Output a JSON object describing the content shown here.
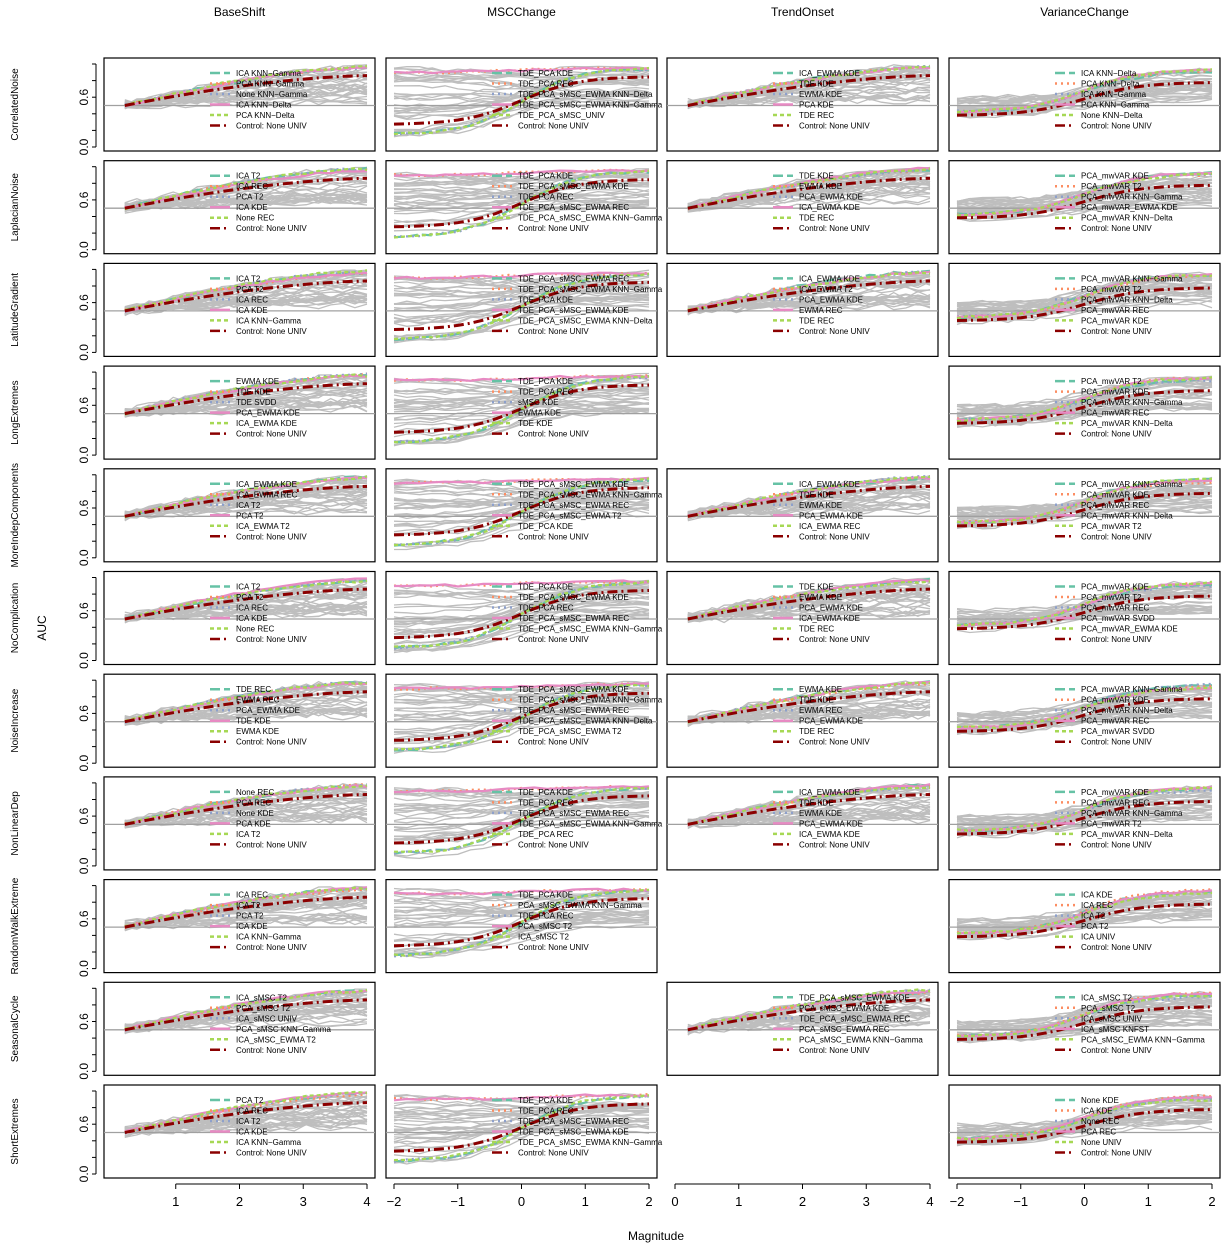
{
  "figure": {
    "ylabel": "AUC",
    "xlabel": "Magnitude",
    "reference_line": 0.5,
    "colors": {
      "legend_styles": [
        "#66c2a5",
        "#fc8d62",
        "#8da0cb",
        "#e78ac3",
        "#a6d854",
        "#8b0000"
      ],
      "background_lines": "#bebebe",
      "reference_line": "#a0a0a0"
    }
  },
  "chart_data": {
    "type": "line",
    "grid": false,
    "columns": [
      {
        "name": "BaseShift",
        "xlim": [
          0,
          4
        ],
        "xticks": [
          1,
          2,
          3,
          4
        ]
      },
      {
        "name": "MSCChange",
        "xlim": [
          -2,
          2
        ],
        "xticks": [
          -2,
          -1,
          0,
          1,
          2
        ]
      },
      {
        "name": "TrendOnset",
        "xlim": [
          0,
          4
        ],
        "xticks": [
          0,
          1,
          2,
          3,
          4
        ]
      },
      {
        "name": "VarianceChange",
        "xlim": [
          -2,
          2
        ],
        "xticks": [
          -2,
          -1,
          0,
          1,
          2
        ]
      }
    ],
    "rows": [
      "CorrelatedNoise",
      "LaplacianNoise",
      "LatitudeGradient",
      "LongExtremes",
      "MoreIndepComponents",
      "NoComplication",
      "NoiseIncrease",
      "NonLinearDep",
      "RandomWalkExtreme",
      "SeasonalCycle",
      "ShortExtremes"
    ],
    "ylim": [
      0,
      1
    ],
    "yticks": [
      "0.0",
      "0.6"
    ],
    "panels": [
      [
        {
          "legend": [
            "ICA KNN−Gamma",
            "PCA KNN−Gamma",
            "None KNN−Gamma",
            "ICA KNN−Delta",
            "PCA KNN−Delta",
            "Control: None UNIV"
          ]
        },
        {
          "legend": [
            "TDE_PCA KDE",
            "TDE_PCA REC",
            "TDE_PCA_sMSC_EWMA KNN−Delta",
            "TDE_PCA_sMSC_EWMA KNN−Gamma",
            "TDE_PCA_sMSC_UNIV",
            "Control: None UNIV"
          ]
        },
        {
          "legend": [
            "ICA_EWMA KDE",
            "TDE KDE",
            "EWMA KDE",
            "PCA KDE",
            "TDE REC",
            "Control: None UNIV"
          ]
        },
        {
          "legend": [
            "ICA KNN−Delta",
            "PCA KNN−Delta",
            "ICA KNN−Gamma",
            "PCA KNN−Gamma",
            "None KNN−Delta",
            "Control: None UNIV"
          ]
        }
      ],
      [
        {
          "legend": [
            "ICA T2",
            "ICA REC",
            "PCA T2",
            "ICA KDE",
            "None REC",
            "Control: None UNIV"
          ]
        },
        {
          "legend": [
            "TDE_PCA KDE",
            "TDE_PCA_sMSC_EWMA KDE",
            "TDE_PCA REC",
            "TDE_PCA_sMSC_EWMA REC",
            "TDE_PCA_sMSC_EWMA KNN−Gamma",
            "Control: None UNIV"
          ]
        },
        {
          "legend": [
            "TDE KDE",
            "EWMA KDE",
            "PCA_EWMA KDE",
            "ICA_EWMA KDE",
            "TDE REC",
            "Control: None UNIV"
          ]
        },
        {
          "legend": [
            "PCA_mwVAR KDE",
            "PCA_mwVAR T2",
            "PCA_mwVAR KNN−Gamma",
            "PCA_mwVAR_EWMA KDE",
            "PCA_mwVAR KNN−Delta",
            "Control: None UNIV"
          ]
        }
      ],
      [
        {
          "legend": [
            "ICA T2",
            "PCA T2",
            "ICA REC",
            "ICA KDE",
            "ICA KNN−Gamma",
            "Control: None UNIV"
          ]
        },
        {
          "legend": [
            "TDE_PCA_sMSC_EWMA REC",
            "TDE_PCA_sMSC_EWMA KNN−Gamma",
            "TDE_PCA KDE",
            "TDE_PCA_sMSC_EWMA KDE",
            "TDE_PCA_sMSC_EWMA KNN−Delta",
            "Control: None UNIV"
          ]
        },
        {
          "legend": [
            "ICA_EWMA KDE",
            "ICA_EWMA T2",
            "PCA_EWMA KDE",
            "EWMA REC",
            "TDE REC",
            "Control: None UNIV"
          ]
        },
        {
          "legend": [
            "PCA_mwVAR KNN−Gamma",
            "PCA_mwVAR T2",
            "PCA_mwVAR KNN−Delta",
            "PCA_mwVAR REC",
            "PCA_mwVAR KDE",
            "Control: None UNIV"
          ]
        }
      ],
      [
        {
          "legend": [
            "EWMA KDE",
            "TDE KDE",
            "TDE SVDD",
            "PCA_EWMA KDE",
            "ICA_EWMA KDE",
            "Control: None UNIV"
          ]
        },
        {
          "legend": [
            "TDE_PCA KDE",
            "TDE_PCA REC",
            "sMSC KDE",
            "EWMA KDE",
            "TDE KDE",
            "Control: None UNIV"
          ]
        },
        null,
        {
          "legend": [
            "PCA_mwVAR T2",
            "PCA_mwVAR KDE",
            "PCA_mwVAR KNN−Gamma",
            "PCA_mwVAR REC",
            "PCA_mwVAR KNN−Delta",
            "Control: None UNIV"
          ]
        }
      ],
      [
        {
          "legend": [
            "ICA_EWMA KDE",
            "ICA_EWMA REC",
            "ICA T2",
            "PCA T2",
            "ICA_EWMA T2",
            "Control: None UNIV"
          ]
        },
        {
          "legend": [
            "TDE_PCA_sMSC_EWMA KDE",
            "TDE_PCA_sMSC_EWMA KNN−Gamma",
            "TDE_PCA_sMSC_EWMA REC",
            "TDE_PCA_sMSC_EWMA T2",
            "TDE_PCA KDE",
            "Control: None UNIV"
          ]
        },
        {
          "legend": [
            "ICA_EWMA KDE",
            "TDE KDE",
            "EWMA KDE",
            "PCA_EWMA KDE",
            "ICA_EWMA REC",
            "Control: None UNIV"
          ]
        },
        {
          "legend": [
            "PCA_mwVAR KNN−Gamma",
            "PCA_mwVAR KDE",
            "PCA_mwVAR REC",
            "PCA_mwVAR KNN−Delta",
            "PCA_mwVAR T2",
            "Control: None UNIV"
          ]
        }
      ],
      [
        {
          "legend": [
            "ICA T2",
            "PCA T2",
            "ICA REC",
            "ICA KDE",
            "None REC",
            "Control: None UNIV"
          ]
        },
        {
          "legend": [
            "TDE_PCA KDE",
            "TDE_PCA_sMSC_EWMA KDE",
            "TDE_PCA REC",
            "TDE_PCA_sMSC_EWMA REC",
            "TDE_PCA_sMSC_EWMA KNN−Gamma",
            "Control: None UNIV"
          ]
        },
        {
          "legend": [
            "TDE KDE",
            "EWMA KDE",
            "PCA_EWMA KDE",
            "ICA_EWMA KDE",
            "TDE REC",
            "Control: None UNIV"
          ]
        },
        {
          "legend": [
            "PCA_mwVAR KDE",
            "PCA_mwVAR T2",
            "PCA_mwVAR REC",
            "PCA_mwVAR SVDD",
            "PCA_mwVAR_EWMA KDE",
            "Control: None UNIV"
          ]
        }
      ],
      [
        {
          "legend": [
            "TDE REC",
            "EWMA REC",
            "PCA_EWMA KDE",
            "TDE KDE",
            "EWMA KDE",
            "Control: None UNIV"
          ]
        },
        {
          "legend": [
            "TDE_PCA_sMSC_EWMA KDE",
            "TDE_PCA_sMSC_EWMA KNN−Gamma",
            "TDE_PCA_sMSC_EWMA REC",
            "TDE_PCA_sMSC_EWMA KNN−Delta",
            "TDE_PCA_sMSC_EWMA T2",
            "Control: None UNIV"
          ]
        },
        {
          "legend": [
            "EWMA KDE",
            "TDE KDE",
            "EWMA REC",
            "PCA_EWMA KDE",
            "TDE REC",
            "Control: None UNIV"
          ]
        },
        {
          "legend": [
            "PCA_mwVAR KNN−Gamma",
            "PCA_mwVAR KDE",
            "PCA_mwVAR KNN−Delta",
            "PCA_mwVAR REC",
            "PCA_mwVAR SVDD",
            "Control: None UNIV"
          ]
        }
      ],
      [
        {
          "legend": [
            "None REC",
            "PCA REC",
            "None KDE",
            "PCA KDE",
            "ICA T2",
            "Control: None UNIV"
          ]
        },
        {
          "legend": [
            "TDE_PCA KDE",
            "TDE_PCA REC",
            "TDE_PCA_sMSC_EWMA REC",
            "TDE_PCA_sMSC_EWMA KNN−Gamma",
            "TDE_PCA REC",
            "Control: None UNIV"
          ]
        },
        {
          "legend": [
            "ICA_EWMA KDE",
            "TDE KDE",
            "EWMA KDE",
            "PCA_EWMA KDE",
            "ICA_EWMA KDE",
            "Control: None UNIV"
          ]
        },
        {
          "legend": [
            "PCA_mwVAR KDE",
            "PCA_mwVAR REC",
            "PCA_mwVAR KNN−Gamma",
            "PCA_mwVAR T2",
            "PCA_mwVAR KNN−Delta",
            "Control: None UNIV"
          ]
        }
      ],
      [
        {
          "legend": [
            "ICA REC",
            "ICA T2",
            "PCA T2",
            "ICA KDE",
            "ICA KNN−Gamma",
            "Control: None UNIV"
          ]
        },
        {
          "legend": [
            "TDE_PCA KDE",
            "PCA_sMSC_EWMA KNN−Gamma",
            "TDE_PCA REC",
            "PCA_sMSC T2",
            "ICA_sMSC T2",
            "Control: None UNIV"
          ]
        },
        null,
        {
          "legend": [
            "ICA KDE",
            "ICA REC",
            "ICA T2",
            "PCA T2",
            "ICA UNIV",
            "Control: None UNIV"
          ]
        }
      ],
      [
        {
          "legend": [
            "ICA_sMSC T2",
            "PCA_sMSC T2",
            "ICA_sMSC UNIV",
            "PCA_sMSC KNN−Gamma",
            "ICA_sMSC_EWMA T2",
            "Control: None UNIV"
          ]
        },
        null,
        {
          "legend": [
            "TDE_PCA_sMSC_EWMA KDE",
            "PCA_sMSC_EWMA KDE",
            "TDE_PCA_sMSC_EWMA REC",
            "PCA_sMSC_EWMA REC",
            "PCA_sMSC_EWMA KNN−Gamma",
            "Control: None UNIV"
          ]
        },
        {
          "legend": [
            "ICA_sMSC T2",
            "PCA_sMSC T2",
            "ICA_sMSC UNIV",
            "ICA_sMSC KNFST",
            "PCA_sMSC_EWMA KNN−Gamma",
            "Control: None UNIV"
          ]
        }
      ],
      [
        {
          "legend": [
            "PCA T2",
            "ICA REC",
            "ICA T2",
            "ICA KDE",
            "ICA KNN−Gamma",
            "Control: None UNIV"
          ]
        },
        {
          "legend": [
            "TDE_PCA KDE",
            "TDE_PCA REC",
            "TDE_PCA_sMSC_EWMA REC",
            "TDE_PCA_sMSC_EWMA KDE",
            "TDE_PCA_sMSC_EWMA KNN−Gamma",
            "Control: None UNIV"
          ]
        },
        null,
        {
          "legend": [
            "None KDE",
            "ICA KDE",
            "None REC",
            "PCA REC",
            "None UNIV",
            "Control: None UNIV"
          ]
        }
      ]
    ]
  }
}
